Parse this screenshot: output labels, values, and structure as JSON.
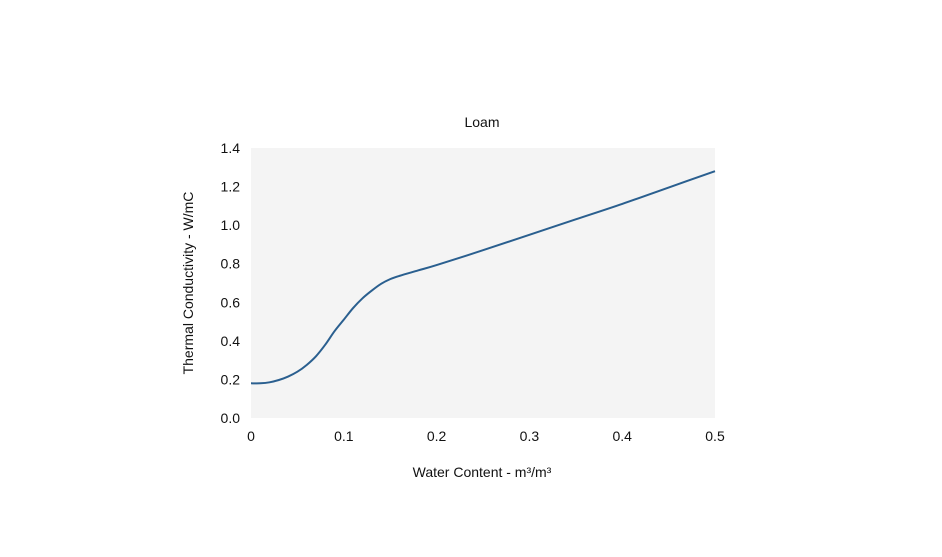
{
  "chart_data": {
    "type": "line",
    "title": "Loam",
    "xlabel": "Water Content - m³/m³",
    "ylabel": "Thermal Conductivity - W/mC",
    "xlim": [
      0,
      0.5
    ],
    "ylim": [
      0,
      1.4
    ],
    "x_ticks": [
      {
        "value": 0,
        "label": "0"
      },
      {
        "value": 0.1,
        "label": "0.1"
      },
      {
        "value": 0.2,
        "label": "0.2"
      },
      {
        "value": 0.3,
        "label": "0.3"
      },
      {
        "value": 0.4,
        "label": "0.4"
      },
      {
        "value": 0.5,
        "label": "0.5"
      }
    ],
    "y_ticks": [
      {
        "value": 0,
        "label": "0.0"
      },
      {
        "value": 0.2,
        "label": "0.2"
      },
      {
        "value": 0.4,
        "label": "0.4"
      },
      {
        "value": 0.6,
        "label": "0.6"
      },
      {
        "value": 0.8,
        "label": "0.8"
      },
      {
        "value": 1.0,
        "label": "1.0"
      },
      {
        "value": 1.2,
        "label": "1.2"
      },
      {
        "value": 1.4,
        "label": "1.4"
      }
    ],
    "grid": false,
    "legend": "none",
    "colors": {
      "line": "#2a5f8f",
      "plot_background": "#f4f4f4"
    },
    "series": [
      {
        "x": [
          0,
          0.01,
          0.02,
          0.03,
          0.04,
          0.05,
          0.06,
          0.07,
          0.08,
          0.09,
          0.1,
          0.11,
          0.12,
          0.13,
          0.14,
          0.15,
          0.16,
          0.18,
          0.2,
          0.25,
          0.3,
          0.35,
          0.4,
          0.45,
          0.5
        ],
        "y": [
          0.18,
          0.18,
          0.185,
          0.197,
          0.215,
          0.24,
          0.275,
          0.32,
          0.38,
          0.45,
          0.51,
          0.57,
          0.62,
          0.66,
          0.695,
          0.72,
          0.737,
          0.765,
          0.793,
          0.87,
          0.95,
          1.03,
          1.11,
          1.195,
          1.28
        ]
      }
    ]
  }
}
